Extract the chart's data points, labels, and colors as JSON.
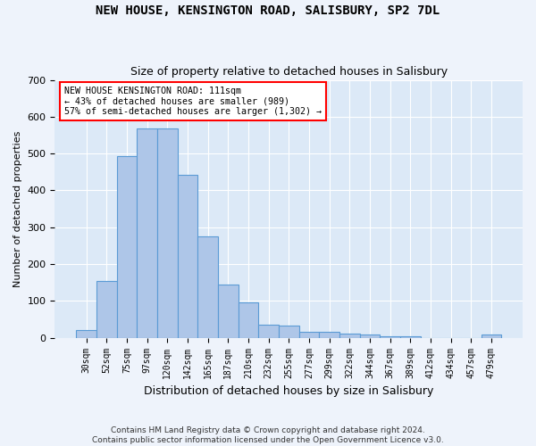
{
  "title1": "NEW HOUSE, KENSINGTON ROAD, SALISBURY, SP2 7DL",
  "title2": "Size of property relative to detached houses in Salisbury",
  "xlabel": "Distribution of detached houses by size in Salisbury",
  "ylabel": "Number of detached properties",
  "categories": [
    "30sqm",
    "52sqm",
    "75sqm",
    "97sqm",
    "120sqm",
    "142sqm",
    "165sqm",
    "187sqm",
    "210sqm",
    "232sqm",
    "255sqm",
    "277sqm",
    "299sqm",
    "322sqm",
    "344sqm",
    "367sqm",
    "389sqm",
    "412sqm",
    "434sqm",
    "457sqm",
    "479sqm"
  ],
  "values": [
    22,
    155,
    492,
    567,
    567,
    443,
    275,
    145,
    97,
    35,
    32,
    15,
    15,
    12,
    8,
    5,
    5,
    0,
    0,
    0,
    8
  ],
  "bar_color": "#aec6e8",
  "bar_edge_color": "#5b9bd5",
  "annotation_line1": "NEW HOUSE KENSINGTON ROAD: 111sqm",
  "annotation_line2": "← 43% of detached houses are smaller (989)",
  "annotation_line3": "57% of semi-detached houses are larger (1,302) →",
  "footnote1": "Contains HM Land Registry data © Crown copyright and database right 2024.",
  "footnote2": "Contains public sector information licensed under the Open Government Licence v3.0.",
  "background_color": "#eef3fb",
  "plot_bg_color": "#dce9f7",
  "grid_color": "#ffffff",
  "ylim": [
    0,
    700
  ],
  "yticks": [
    0,
    100,
    200,
    300,
    400,
    500,
    600,
    700
  ]
}
